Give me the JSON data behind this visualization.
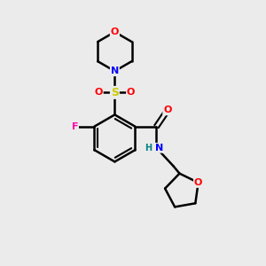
{
  "background_color": "#ebebeb",
  "bond_color": "#000000",
  "atom_colors": {
    "O": "#ff0000",
    "N": "#0000ff",
    "F": "#ff00aa",
    "S": "#cccc00",
    "C": "#000000",
    "H": "#008080"
  },
  "figsize": [
    3.0,
    3.0
  ],
  "dpi": 100
}
